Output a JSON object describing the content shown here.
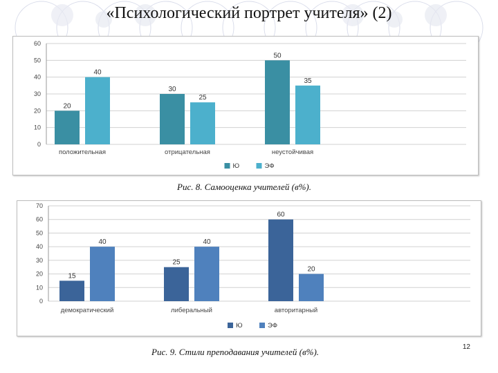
{
  "slide": {
    "title": "«Психологический портрет учителя» (2)",
    "page_number": "12",
    "captions": [
      "Рис. 8.  Самооценка учителей (в%).",
      "Рис. 9.  Стили преподавания учителей (в%)."
    ]
  },
  "chart_data": [
    {
      "type": "bar",
      "categories": [
        "положительная",
        "отрицательная",
        "неустойчивая"
      ],
      "series": [
        {
          "name": "Ю",
          "values": [
            20,
            30,
            50
          ],
          "color": "#3a8fa3"
        },
        {
          "name": "ЭФ",
          "values": [
            40,
            25,
            35
          ],
          "color": "#4cb0cc"
        }
      ],
      "ylim": [
        0,
        60
      ],
      "yticks": [
        0,
        10,
        20,
        30,
        40,
        50,
        60
      ],
      "grid": true,
      "legend": "bottom",
      "data_labels": true
    },
    {
      "type": "bar",
      "categories": [
        "демократический",
        "либеральный",
        "авторитарный"
      ],
      "series": [
        {
          "name": "Ю",
          "values": [
            15,
            25,
            60
          ],
          "color": "#3b6499"
        },
        {
          "name": "ЭФ",
          "values": [
            40,
            40,
            20
          ],
          "color": "#4f81bd"
        }
      ],
      "ylim": [
        0,
        70
      ],
      "yticks": [
        0,
        10,
        20,
        30,
        40,
        50,
        60,
        70
      ],
      "grid": true,
      "legend": "bottom",
      "data_labels": true
    }
  ]
}
